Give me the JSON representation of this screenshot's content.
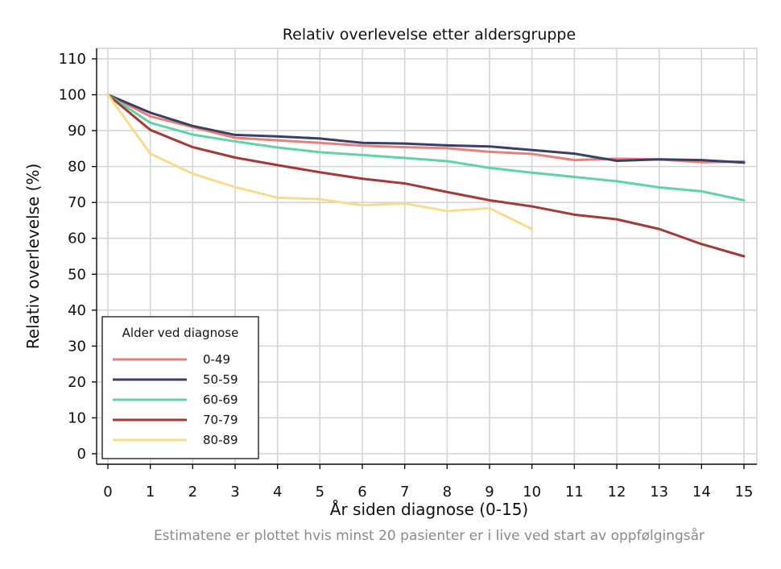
{
  "chart_data": {
    "type": "line",
    "title": "Relativ overlevelse etter aldersgruppe",
    "xlabel": "År siden diagnose (0-15)",
    "ylabel": "Relativ overlevelse (%)",
    "note": "Estimatene er plottet hvis minst 20 pasienter er i live ved start av oppfølgingsår",
    "xlim": [
      0,
      15
    ],
    "ylim": [
      0,
      110
    ],
    "x_ticks": [
      0,
      1,
      2,
      3,
      4,
      5,
      6,
      7,
      8,
      9,
      10,
      11,
      12,
      13,
      14,
      15
    ],
    "y_ticks": [
      0,
      10,
      20,
      30,
      40,
      50,
      60,
      70,
      80,
      90,
      100,
      110
    ],
    "grid": true,
    "legend": {
      "title": "Alder ved diagnose",
      "position": "bottom-left"
    },
    "series": [
      {
        "name": "0-49",
        "color": "#e8807a",
        "x": [
          0,
          1,
          2,
          3,
          4,
          5,
          6,
          7,
          8,
          9,
          10,
          11,
          12,
          13,
          14,
          15
        ],
        "values": [
          100,
          94,
          91,
          88,
          87.3,
          86.6,
          85.8,
          85.4,
          85.1,
          84.1,
          83.5,
          81.8,
          82.2,
          82.0,
          81.2,
          81.4
        ]
      },
      {
        "name": "50-59",
        "color": "#3a3f66",
        "x": [
          0,
          1,
          2,
          3,
          4,
          5,
          6,
          7,
          8,
          9,
          10,
          11,
          12,
          13,
          14,
          15
        ],
        "values": [
          100,
          95,
          91.3,
          88.8,
          88.4,
          87.8,
          86.6,
          86.4,
          85.9,
          85.6,
          84.6,
          83.6,
          81.6,
          82.0,
          81.8,
          81.1
        ]
      },
      {
        "name": "60-69",
        "color": "#5fd3a6",
        "x": [
          0,
          1,
          2,
          3,
          4,
          5,
          6,
          7,
          8,
          9,
          10,
          11,
          12,
          13,
          14,
          15
        ],
        "values": [
          100,
          92.2,
          88.9,
          87.0,
          85.3,
          84.0,
          83.2,
          82.4,
          81.5,
          79.6,
          78.3,
          77.1,
          75.9,
          74.2,
          73.1,
          70.6
        ]
      },
      {
        "name": "70-79",
        "color": "#a23a38",
        "x": [
          0,
          1,
          2,
          3,
          4,
          5,
          6,
          7,
          8,
          9,
          10,
          11,
          12,
          13,
          14,
          15
        ],
        "values": [
          100,
          90.2,
          85.4,
          82.5,
          80.4,
          78.4,
          76.6,
          75.3,
          72.9,
          70.6,
          68.9,
          66.6,
          65.3,
          62.6,
          58.4,
          55.0
        ]
      },
      {
        "name": "80-89",
        "color": "#f7dc8f",
        "x": [
          0,
          1,
          2,
          3,
          4,
          5,
          6,
          7,
          8,
          9,
          10
        ],
        "values": [
          100,
          83.6,
          78.0,
          74.3,
          71.3,
          70.9,
          69.2,
          69.7,
          67.6,
          68.4,
          62.6
        ]
      }
    ]
  }
}
